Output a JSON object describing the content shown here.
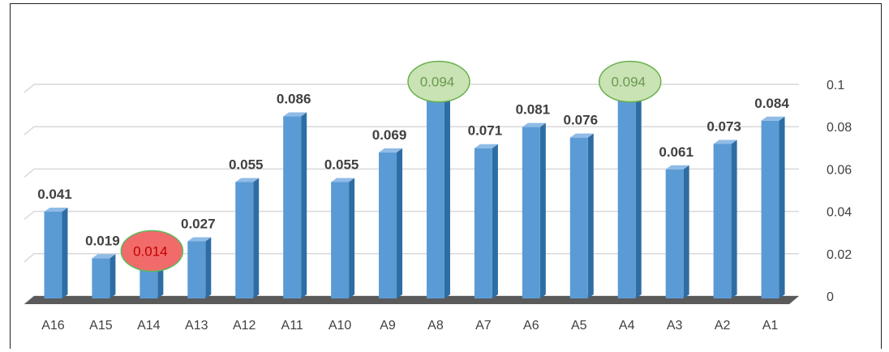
{
  "colors": {
    "bar_front": "#5b9bd5",
    "bar_side": "#2e6da4",
    "bar_top": "#8fbbe6",
    "floor": "#5a5a5a",
    "grid": "#d9d9d9",
    "highlight_min_fill": "#f26b6b",
    "highlight_min_stroke": "#5cb85c",
    "highlight_max_fill": "#c9e3b4",
    "highlight_max_stroke": "#6ab04c",
    "highlight_min_text": "#c00000",
    "highlight_max_text": "#6a9a50"
  },
  "chart_data": {
    "type": "bar",
    "title": "",
    "xlabel": "",
    "ylabel": "",
    "categories": [
      "A16",
      "A15",
      "A14",
      "A13",
      "A12",
      "A11",
      "A10",
      "A9",
      "A8",
      "A7",
      "A6",
      "A5",
      "A4",
      "A3",
      "A2",
      "A1"
    ],
    "values": [
      0.041,
      0.019,
      0.014,
      0.027,
      0.055,
      0.086,
      0.055,
      0.069,
      0.094,
      0.071,
      0.081,
      0.076,
      0.094,
      0.061,
      0.073,
      0.084
    ],
    "value_labels": [
      "0.041",
      "0.019",
      "0.014",
      "0.027",
      "0.055",
      "0.086",
      "0.055",
      "0.069",
      "0.094",
      "0.071",
      "0.081",
      "0.076",
      "0.094",
      "0.061",
      "0.073",
      "0.084"
    ],
    "ylim": [
      0,
      0.1
    ],
    "yticks": [
      "0",
      "0.02",
      "0.04",
      "0.06",
      "0.08",
      "0.1"
    ],
    "y_axis_side": "right",
    "style": "3d-column",
    "grid": true,
    "highlights": [
      {
        "category": "A14",
        "kind": "min"
      },
      {
        "category": "A8",
        "kind": "max"
      },
      {
        "category": "A4",
        "kind": "max"
      }
    ]
  }
}
